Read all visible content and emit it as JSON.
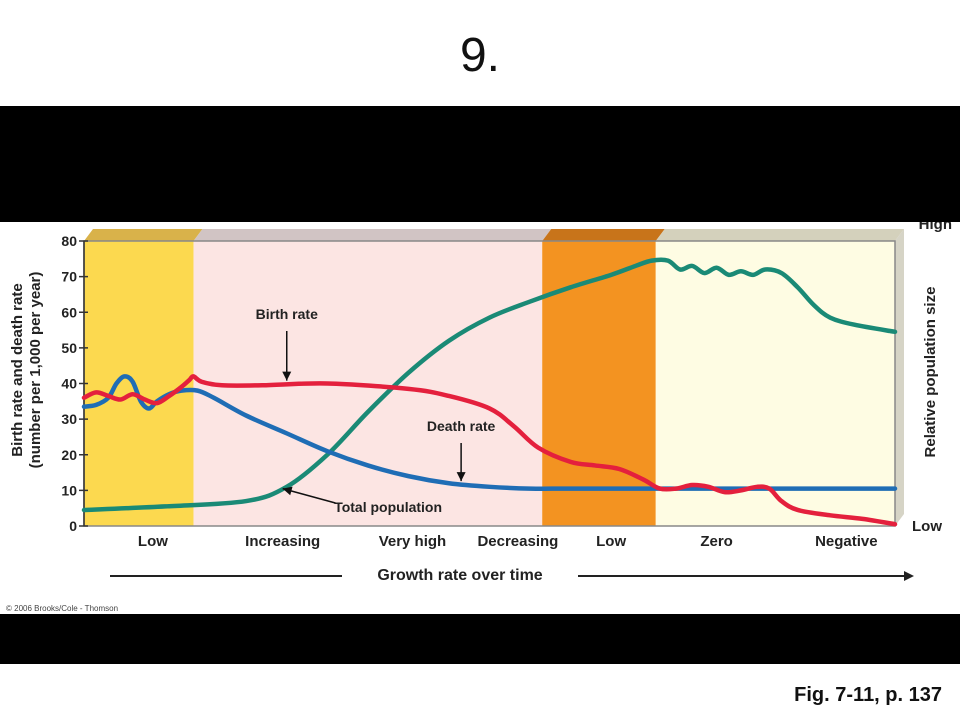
{
  "slide": {
    "title": "9.",
    "caption": "Fig. 7-11, p. 137"
  },
  "chart_data": {
    "type": "line",
    "ylabel_line1": "Birth rate and death rate",
    "ylabel_line2": "(number per 1,000 per year)",
    "y2label": "Relative population size",
    "y2_high": "High",
    "y2_low": "Low",
    "ylim": [
      0,
      80
    ],
    "yticks": [
      0,
      10,
      20,
      30,
      40,
      50,
      60,
      70,
      80
    ],
    "xlabel": "Growth rate over time",
    "x_range": [
      0,
      100
    ],
    "phase_labels": [
      "Low",
      "Increasing",
      "Very high",
      "Decreasing",
      "Low",
      "Zero",
      "Negative"
    ],
    "stages": [
      {
        "x0": 0,
        "x1": 13.5,
        "color": "#FCD94F",
        "top": "#D9B24A"
      },
      {
        "x0": 13.5,
        "x1": 56.5,
        "color": "#FCE5E3",
        "top": "#D1C4C4"
      },
      {
        "x0": 56.5,
        "x1": 70.5,
        "color": "#F39321",
        "top": "#C8741A"
      },
      {
        "x0": 70.5,
        "x1": 100,
        "color": "#FEFCE3",
        "top": "#D4D1BC"
      }
    ],
    "series": [
      {
        "name": "Birth rate",
        "color": "#E4203D",
        "points": [
          [
            0,
            36
          ],
          [
            1.5,
            37.5
          ],
          [
            3,
            36.5
          ],
          [
            4.5,
            35.5
          ],
          [
            6,
            37
          ],
          [
            7.5,
            35.5
          ],
          [
            9,
            34.5
          ],
          [
            10.5,
            36.5
          ],
          [
            12,
            39
          ],
          [
            13,
            41
          ],
          [
            13.5,
            42
          ],
          [
            14.5,
            40.5
          ],
          [
            17,
            39.5
          ],
          [
            22,
            39.5
          ],
          [
            30,
            40
          ],
          [
            40,
            38.5
          ],
          [
            45,
            36.5
          ],
          [
            50,
            33
          ],
          [
            53,
            28
          ],
          [
            56,
            22
          ],
          [
            60,
            18
          ],
          [
            63,
            17
          ],
          [
            66,
            16
          ],
          [
            69,
            13
          ],
          [
            71,
            10.5
          ],
          [
            73,
            10.5
          ],
          [
            75,
            11.5
          ],
          [
            77,
            11
          ],
          [
            79,
            9.5
          ],
          [
            81,
            10
          ],
          [
            83,
            11
          ],
          [
            84.5,
            10.5
          ],
          [
            86,
            7
          ],
          [
            88,
            4.5
          ],
          [
            92,
            3
          ],
          [
            96,
            2
          ],
          [
            100,
            0.5
          ]
        ]
      },
      {
        "name": "Death rate",
        "color": "#1F6DB5",
        "points": [
          [
            0,
            33.5
          ],
          [
            1.5,
            34
          ],
          [
            3,
            36
          ],
          [
            4,
            40
          ],
          [
            5,
            42
          ],
          [
            6,
            40.5
          ],
          [
            7,
            35
          ],
          [
            8,
            33
          ],
          [
            9,
            35
          ],
          [
            10.5,
            37
          ],
          [
            12,
            38
          ],
          [
            14,
            38
          ],
          [
            16,
            36
          ],
          [
            20,
            31
          ],
          [
            25,
            26
          ],
          [
            30,
            21
          ],
          [
            35,
            17
          ],
          [
            40,
            14
          ],
          [
            45,
            12
          ],
          [
            50,
            11
          ],
          [
            55,
            10.5
          ],
          [
            60,
            10.5
          ],
          [
            70,
            10.5
          ],
          [
            80,
            10.5
          ],
          [
            90,
            10.5
          ],
          [
            100,
            10.5
          ]
        ]
      },
      {
        "name": "Total population",
        "color": "#1A8A76",
        "points": [
          [
            0,
            4.5
          ],
          [
            10,
            5.5
          ],
          [
            20,
            7
          ],
          [
            25,
            11
          ],
          [
            30,
            20
          ],
          [
            35,
            32
          ],
          [
            40,
            43
          ],
          [
            45,
            52
          ],
          [
            50,
            58.5
          ],
          [
            55,
            63
          ],
          [
            60,
            67
          ],
          [
            65,
            70.5
          ],
          [
            68,
            73
          ],
          [
            70,
            74.5
          ],
          [
            72,
            74.5
          ],
          [
            73.5,
            72
          ],
          [
            75,
            73
          ],
          [
            76.5,
            71
          ],
          [
            78,
            72.5
          ],
          [
            79.5,
            70.5
          ],
          [
            81,
            71.5
          ],
          [
            82.5,
            70.5
          ],
          [
            84,
            72
          ],
          [
            86,
            71
          ],
          [
            88,
            67
          ],
          [
            90,
            62
          ],
          [
            92,
            58.5
          ],
          [
            95,
            56.5
          ],
          [
            100,
            54.5
          ]
        ]
      }
    ],
    "annotations": [
      {
        "text": "Birth rate",
        "series": "Birth rate"
      },
      {
        "text": "Death rate",
        "series": "Death rate"
      },
      {
        "text": "Total population",
        "series": "Total population"
      }
    ],
    "copyright": "© 2006 Brooks/Cole - Thomson"
  }
}
